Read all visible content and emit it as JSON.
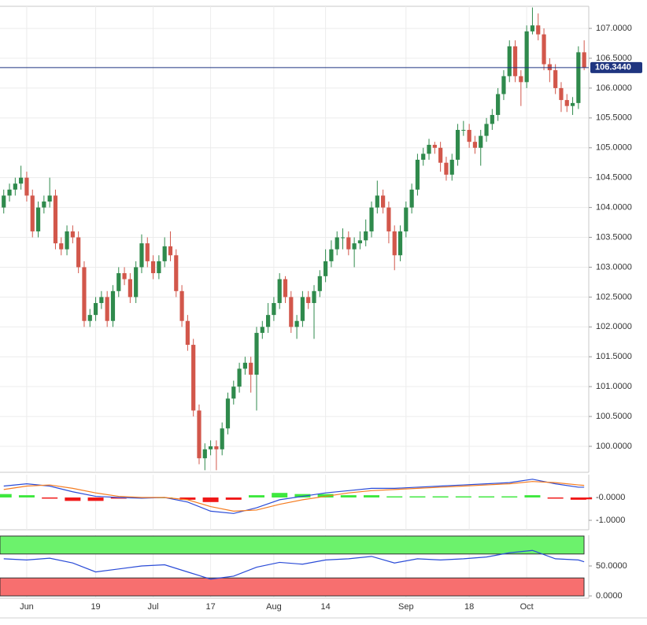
{
  "chart_data": [
    {
      "type": "candlestick",
      "x": [
        0,
        1,
        2,
        3,
        4,
        5,
        6,
        7,
        8,
        9,
        10,
        11,
        12,
        13,
        14,
        15,
        16,
        17,
        18,
        19,
        20,
        21,
        22,
        23,
        24,
        25,
        26,
        27,
        28,
        29,
        30,
        31,
        32,
        33,
        34,
        35,
        36,
        37,
        38,
        39,
        40,
        41,
        42,
        43,
        44,
        45,
        46,
        47,
        48,
        49,
        50,
        51,
        52,
        53,
        54,
        55,
        56,
        57,
        58,
        59,
        60,
        61,
        62,
        63,
        64,
        65,
        66,
        67,
        68,
        69,
        70,
        71,
        72,
        73,
        74,
        75,
        76,
        77,
        78,
        79,
        80,
        81,
        82,
        83,
        84,
        85,
        86,
        87,
        88,
        89,
        90,
        91,
        92,
        93,
        94,
        95,
        96,
        97,
        98,
        99,
        100,
        101
      ],
      "open": [
        104.0,
        104.2,
        104.3,
        104.4,
        104.5,
        104.2,
        103.6,
        104.0,
        104.1,
        104.2,
        103.4,
        103.3,
        103.6,
        103.5,
        103.0,
        102.1,
        102.2,
        102.4,
        102.5,
        102.1,
        102.6,
        102.9,
        102.8,
        102.5,
        103.0,
        103.4,
        103.1,
        102.9,
        103.1,
        103.35,
        103.2,
        102.6,
        102.1,
        101.7,
        100.6,
        99.8,
        99.95,
        100.0,
        99.95,
        100.3,
        100.8,
        101.0,
        101.3,
        101.4,
        101.2,
        101.9,
        102.0,
        102.2,
        102.4,
        102.8,
        102.5,
        102.0,
        102.1,
        102.5,
        102.4,
        102.6,
        102.85,
        103.1,
        103.3,
        103.5,
        103.5,
        103.3,
        103.4,
        103.45,
        103.6,
        104.0,
        104.2,
        104.0,
        103.6,
        103.2,
        103.6,
        104.0,
        104.3,
        104.8,
        104.9,
        105.05,
        105.0,
        104.75,
        104.55,
        104.8,
        105.3,
        105.3,
        105.1,
        105.0,
        105.2,
        105.4,
        105.55,
        105.9,
        106.2,
        106.7,
        106.2,
        106.1,
        106.95,
        107.05,
        106.9,
        106.4,
        106.3,
        106.0,
        105.8,
        105.7,
        105.75,
        106.6
      ],
      "high": [
        104.3,
        104.4,
        104.5,
        104.7,
        104.6,
        104.3,
        104.1,
        104.2,
        104.5,
        104.3,
        103.5,
        103.7,
        103.7,
        103.6,
        103.1,
        102.3,
        102.5,
        102.6,
        102.6,
        102.7,
        103.0,
        103.0,
        102.9,
        103.1,
        103.55,
        103.5,
        103.2,
        103.2,
        103.5,
        103.6,
        103.3,
        102.7,
        102.2,
        101.8,
        100.7,
        100.05,
        100.1,
        100.1,
        100.4,
        100.9,
        101.1,
        101.4,
        101.5,
        101.5,
        102.0,
        102.1,
        102.4,
        102.5,
        102.9,
        102.85,
        102.6,
        102.2,
        102.6,
        102.6,
        102.7,
        102.95,
        103.3,
        103.45,
        103.6,
        103.65,
        103.6,
        103.5,
        103.6,
        103.8,
        104.1,
        104.45,
        104.3,
        104.1,
        103.7,
        103.7,
        104.1,
        104.4,
        104.9,
        105.0,
        105.15,
        105.1,
        105.1,
        104.85,
        104.9,
        105.4,
        105.45,
        105.4,
        105.2,
        105.3,
        105.5,
        105.65,
        106.0,
        106.3,
        106.8,
        106.8,
        106.3,
        107.05,
        107.35,
        107.25,
        107.0,
        106.5,
        106.4,
        106.1,
        105.9,
        105.85,
        106.7,
        106.8
      ],
      "low": [
        103.9,
        104.1,
        104.2,
        104.3,
        104.1,
        103.5,
        103.5,
        103.9,
        104.0,
        103.3,
        103.2,
        103.2,
        103.4,
        102.9,
        102.0,
        102.0,
        102.1,
        102.3,
        102.0,
        102.0,
        102.5,
        102.7,
        102.4,
        102.4,
        102.9,
        103.0,
        102.8,
        102.8,
        103.0,
        103.1,
        102.5,
        102.0,
        101.6,
        100.5,
        99.7,
        99.6,
        99.85,
        99.6,
        99.85,
        100.2,
        100.7,
        100.9,
        101.2,
        100.9,
        100.6,
        101.8,
        101.9,
        102.1,
        102.3,
        102.4,
        101.9,
        101.8,
        102.0,
        102.3,
        101.8,
        102.5,
        102.75,
        103.0,
        103.2,
        103.3,
        103.2,
        103.0,
        103.3,
        103.35,
        103.5,
        103.9,
        103.9,
        103.4,
        102.95,
        103.1,
        103.5,
        103.9,
        104.2,
        104.7,
        104.8,
        104.9,
        104.6,
        104.45,
        104.45,
        104.7,
        105.2,
        105.0,
        104.9,
        104.7,
        105.1,
        105.3,
        105.45,
        105.8,
        106.1,
        106.1,
        105.7,
        106.0,
        106.9,
        106.8,
        106.3,
        106.1,
        105.9,
        105.6,
        105.6,
        105.55,
        105.65,
        106.3
      ],
      "close": [
        104.2,
        104.3,
        104.4,
        104.5,
        104.2,
        103.6,
        104.0,
        104.1,
        104.2,
        103.4,
        103.3,
        103.6,
        103.5,
        103.0,
        102.1,
        102.2,
        102.4,
        102.5,
        102.1,
        102.6,
        102.9,
        102.8,
        102.5,
        103.0,
        103.4,
        103.1,
        102.9,
        103.1,
        103.35,
        103.2,
        102.6,
        102.1,
        101.7,
        100.6,
        99.8,
        99.95,
        100.0,
        99.95,
        100.3,
        100.8,
        101.0,
        101.3,
        101.4,
        101.2,
        101.9,
        102.0,
        102.2,
        102.4,
        102.8,
        102.5,
        102.0,
        102.1,
        102.5,
        102.4,
        102.6,
        102.85,
        103.1,
        103.3,
        103.5,
        103.5,
        103.3,
        103.4,
        103.45,
        103.6,
        104.0,
        104.2,
        104.0,
        103.6,
        103.2,
        103.6,
        104.0,
        104.3,
        104.8,
        104.9,
        105.05,
        105.0,
        104.75,
        104.55,
        104.8,
        105.3,
        105.3,
        105.1,
        105.0,
        105.2,
        105.4,
        105.55,
        105.9,
        106.2,
        106.7,
        106.2,
        106.1,
        106.95,
        107.05,
        106.9,
        106.4,
        106.3,
        106.0,
        105.8,
        105.7,
        105.75,
        106.6,
        106.344
      ],
      "up_color": "#2f8a4c",
      "down_color": "#d2574b",
      "xlim": [
        -0.65,
        101.8
      ],
      "ylim": [
        99.565,
        107.37
      ],
      "yticks": [
        {
          "value": 100,
          "label": "100.0000"
        },
        {
          "value": 100.5,
          "label": "100.5000"
        },
        {
          "value": 101,
          "label": "101.0000"
        },
        {
          "value": 101.5,
          "label": "101.5000"
        },
        {
          "value": 102,
          "label": "102.0000"
        },
        {
          "value": 102.5,
          "label": "102.5000"
        },
        {
          "value": 103,
          "label": "103.0000"
        },
        {
          "value": 103.5,
          "label": "103.5000"
        },
        {
          "value": 104,
          "label": "104.0000"
        },
        {
          "value": 104.5,
          "label": "104.5000"
        },
        {
          "value": 105,
          "label": "105.0000"
        },
        {
          "value": 105.5,
          "label": "105.5000"
        },
        {
          "value": 106,
          "label": "106.0000"
        },
        {
          "value": 106.5,
          "label": "106.5000"
        },
        {
          "value": 107,
          "label": "107.0000"
        }
      ],
      "xticks": [
        {
          "value": 4,
          "label": "Jun"
        },
        {
          "value": 16,
          "label": "19"
        },
        {
          "value": 26,
          "label": "Jul"
        },
        {
          "value": 36,
          "label": "17"
        },
        {
          "value": 47,
          "label": "Aug"
        },
        {
          "value": 56,
          "label": "14"
        },
        {
          "value": 70,
          "label": "Sep"
        },
        {
          "value": 81,
          "label": "18"
        },
        {
          "value": 91,
          "label": "Oct"
        }
      ],
      "grid": true,
      "last_price": {
        "value": 106.344,
        "label": "106.3440"
      },
      "last_price_color": "#1f3580"
    },
    {
      "type": "macd",
      "x": [
        0,
        4,
        8,
        12,
        16,
        20,
        24,
        28,
        32,
        36,
        40,
        44,
        48,
        52,
        56,
        60,
        64,
        68,
        72,
        76,
        80,
        84,
        88,
        92,
        96,
        100,
        101
      ],
      "series": [
        {
          "color": "#2a4bd7",
          "values": [
            0.5,
            0.6,
            0.5,
            0.25,
            0.05,
            0,
            -0.03,
            0,
            -0.2,
            -0.6,
            -0.7,
            -0.45,
            -0.1,
            0.05,
            0.2,
            0.3,
            0.4,
            0.4,
            0.45,
            0.5,
            0.55,
            0.6,
            0.65,
            0.8,
            0.6,
            0.45,
            0.45
          ]
        },
        {
          "color": "#f57c20",
          "values": [
            0.35,
            0.5,
            0.55,
            0.4,
            0.2,
            0.05,
            0,
            0,
            -0.1,
            -0.4,
            -0.6,
            -0.55,
            -0.3,
            -0.1,
            0.05,
            0.2,
            0.3,
            0.35,
            0.4,
            0.45,
            0.5,
            0.55,
            0.6,
            0.7,
            0.65,
            0.55,
            0.53
          ]
        }
      ],
      "histogram": {
        "values": [
          0.15,
          0.1,
          -0.05,
          -0.15,
          -0.15,
          -0.05,
          -0.03,
          0,
          -0.1,
          -0.2,
          -0.1,
          0.1,
          0.2,
          0.15,
          0.15,
          0.1,
          0.1,
          0.05,
          0.05,
          0.05,
          0.05,
          0.05,
          0.05,
          0.1,
          -0.05,
          -0.1,
          -0.08
        ],
        "up_color": "#3ee83e",
        "down_color": "#f01818"
      },
      "ylim": [
        -1.414,
        1.0
      ],
      "yticks": [
        {
          "value": 0,
          "label": "-0.0000"
        },
        {
          "value": -1,
          "label": "-1.0000"
        }
      ]
    },
    {
      "type": "rsi",
      "x": [
        0,
        4,
        8,
        12,
        16,
        20,
        24,
        28,
        32,
        36,
        40,
        44,
        48,
        52,
        56,
        60,
        64,
        68,
        72,
        76,
        80,
        84,
        88,
        92,
        96,
        100,
        101
      ],
      "series": [
        {
          "color": "#2a4bd7",
          "values": [
            62,
            60,
            63,
            55,
            40,
            45,
            50,
            52,
            40,
            28,
            33,
            48,
            56,
            53,
            60,
            62,
            66,
            55,
            62,
            60,
            62,
            65,
            72,
            76,
            62,
            60,
            57
          ]
        }
      ],
      "bands": [
        {
          "range": [
            70,
            100
          ],
          "color": "#6cf26c"
        },
        {
          "range": [
            0,
            30
          ],
          "color": "#f76f6f"
        }
      ],
      "ylim": [
        -3.9,
        101.3
      ],
      "yticks": [
        {
          "value": 0,
          "label": "0.0000"
        },
        {
          "value": 50,
          "label": "50.0000"
        }
      ]
    }
  ]
}
